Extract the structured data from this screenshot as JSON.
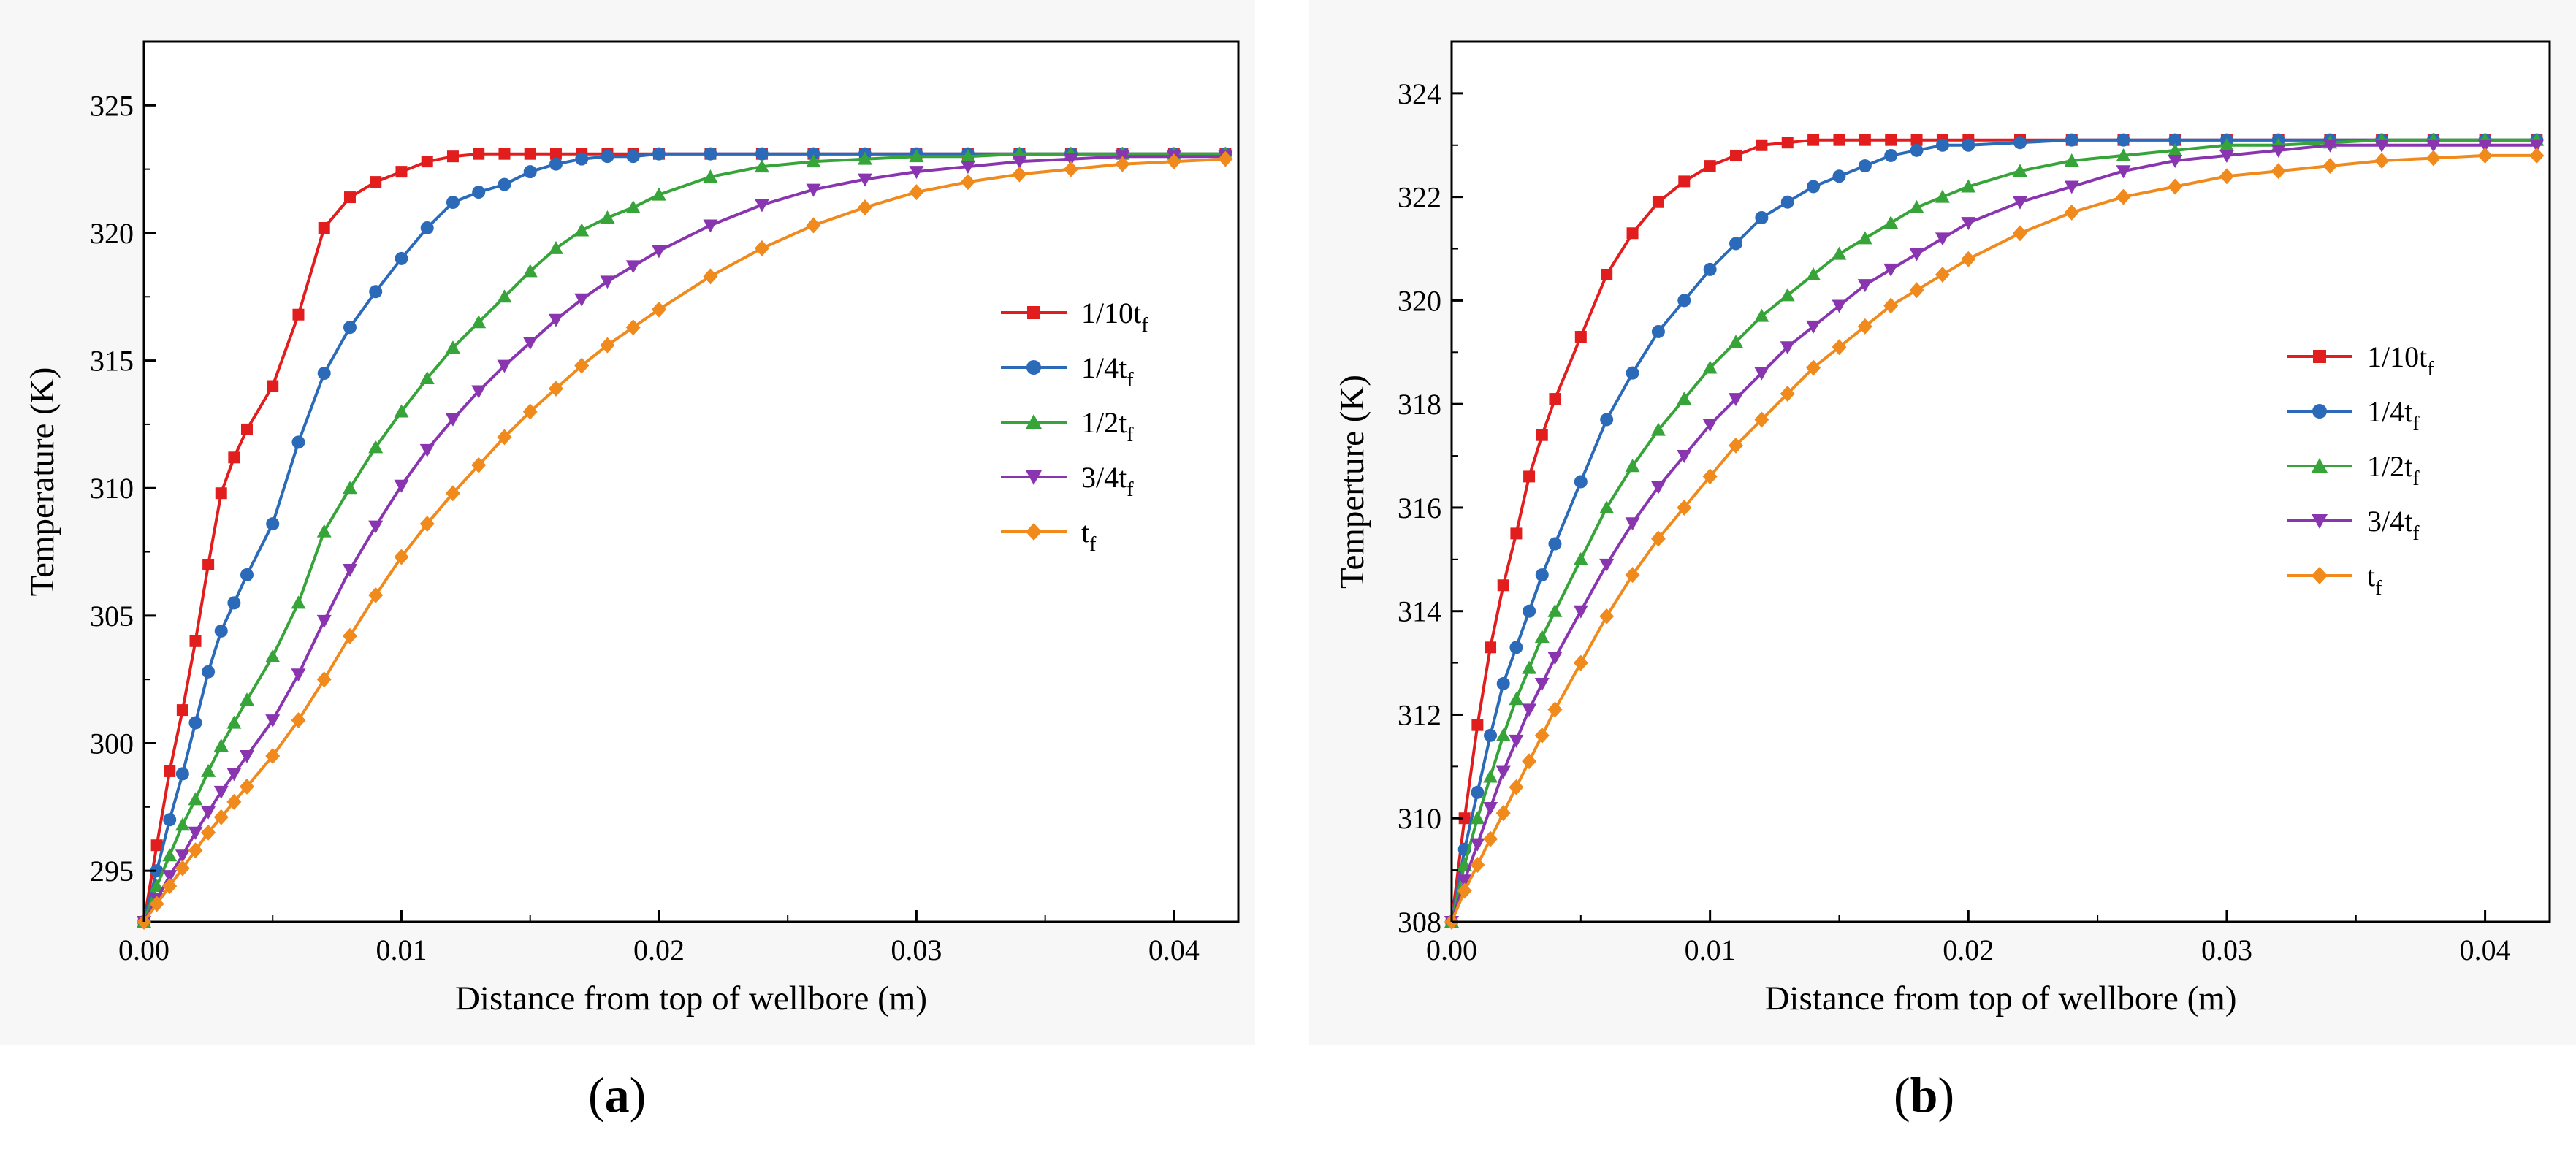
{
  "chart_data": [
    {
      "type": "line",
      "panel_label": "a",
      "xlabel": "Distance from top of wellbore (m)",
      "ylabel": "Temperature (K)",
      "xlim": [
        0,
        0.0425
      ],
      "ylim": [
        293,
        327.5
      ],
      "xticks": [
        "0.00",
        "0.01",
        "0.02",
        "0.03",
        "0.04"
      ],
      "yticks": [
        "295",
        "300",
        "305",
        "310",
        "315",
        "320",
        "325"
      ],
      "legend_position": "right-middle",
      "x": [
        0,
        0.0005,
        0.001,
        0.0015,
        0.002,
        0.0025,
        0.003,
        0.0035,
        0.004,
        0.005,
        0.006,
        0.007,
        0.008,
        0.009,
        0.01,
        0.011,
        0.012,
        0.013,
        0.014,
        0.015,
        0.016,
        0.017,
        0.018,
        0.019,
        0.02,
        0.022,
        0.024,
        0.026,
        0.028,
        0.03,
        0.032,
        0.034,
        0.036,
        0.038,
        0.04,
        0.042
      ],
      "series": [
        {
          "name": "1/10",
          "subscript": "f",
          "color": "#e11d1d",
          "marker": "square",
          "values": [
            293.0,
            296.0,
            298.9,
            301.3,
            304.0,
            307.0,
            309.8,
            311.2,
            312.3,
            314.0,
            316.8,
            320.2,
            321.4,
            322.0,
            322.4,
            322.8,
            323.0,
            323.1,
            323.1,
            323.1,
            323.1,
            323.1,
            323.1,
            323.1,
            323.1,
            323.1,
            323.1,
            323.1,
            323.1,
            323.1,
            323.1,
            323.1,
            323.1,
            323.1,
            323.1,
            323.1
          ]
        },
        {
          "name": "1/4",
          "subscript": "f",
          "color": "#2b6ab8",
          "marker": "circle",
          "values": [
            293.0,
            295.0,
            297.0,
            298.8,
            300.8,
            302.8,
            304.4,
            305.5,
            306.6,
            308.6,
            311.8,
            314.5,
            316.3,
            317.7,
            319.0,
            320.2,
            321.2,
            321.6,
            321.9,
            322.4,
            322.7,
            322.9,
            323.0,
            323.0,
            323.1,
            323.1,
            323.1,
            323.1,
            323.1,
            323.1,
            323.1,
            323.1,
            323.1,
            323.1,
            323.1,
            323.1
          ]
        },
        {
          "name": "1/2",
          "subscript": "f",
          "color": "#37a43a",
          "marker": "triangle-up",
          "values": [
            293.0,
            294.4,
            295.6,
            296.8,
            297.8,
            298.9,
            299.9,
            300.8,
            301.7,
            303.4,
            305.5,
            308.3,
            310.0,
            311.6,
            313.0,
            314.3,
            315.5,
            316.5,
            317.5,
            318.5,
            319.4,
            320.1,
            320.6,
            321.0,
            321.5,
            322.2,
            322.6,
            322.8,
            322.9,
            323.0,
            323.0,
            323.1,
            323.1,
            323.1,
            323.1,
            323.1
          ]
        },
        {
          "name": "3/4",
          "subscript": "f",
          "color": "#8a35b0",
          "marker": "triangle-down",
          "values": [
            293.0,
            293.9,
            294.8,
            295.6,
            296.5,
            297.3,
            298.1,
            298.8,
            299.5,
            300.9,
            302.7,
            304.8,
            306.8,
            308.5,
            310.1,
            311.5,
            312.7,
            313.8,
            314.8,
            315.7,
            316.6,
            317.4,
            318.1,
            318.7,
            319.3,
            320.3,
            321.1,
            321.7,
            322.1,
            322.4,
            322.6,
            322.8,
            322.9,
            323.0,
            323.0,
            323.0
          ]
        },
        {
          "name": "",
          "subscript": "f",
          "color": "#f08a1c",
          "marker": "diamond",
          "values": [
            293.0,
            293.7,
            294.4,
            295.1,
            295.8,
            296.5,
            297.1,
            297.7,
            298.3,
            299.5,
            300.9,
            302.5,
            304.2,
            305.8,
            307.3,
            308.6,
            309.8,
            310.9,
            312.0,
            313.0,
            313.9,
            314.8,
            315.6,
            316.3,
            317.0,
            318.3,
            319.4,
            320.3,
            321.0,
            321.6,
            322.0,
            322.3,
            322.5,
            322.7,
            322.8,
            322.9
          ]
        }
      ]
    },
    {
      "type": "line",
      "panel_label": "b",
      "xlabel": "Distance from top of wellbore (m)",
      "ylabel": "Temperture (K)",
      "xlim": [
        0,
        0.0425
      ],
      "ylim": [
        308,
        325
      ],
      "xticks": [
        "0.00",
        "0.01",
        "0.02",
        "0.03",
        "0.04"
      ],
      "yticks": [
        "308",
        "310",
        "312",
        "314",
        "316",
        "318",
        "320",
        "322",
        "324"
      ],
      "legend_position": "right-middle",
      "x": [
        0,
        0.0005,
        0.001,
        0.0015,
        0.002,
        0.0025,
        0.003,
        0.0035,
        0.004,
        0.005,
        0.006,
        0.007,
        0.008,
        0.009,
        0.01,
        0.011,
        0.012,
        0.013,
        0.014,
        0.015,
        0.016,
        0.017,
        0.018,
        0.019,
        0.02,
        0.022,
        0.024,
        0.026,
        0.028,
        0.03,
        0.032,
        0.034,
        0.036,
        0.038,
        0.04,
        0.042
      ],
      "series": [
        {
          "name": "1/10",
          "subscript": "f",
          "color": "#e11d1d",
          "marker": "square",
          "values": [
            308.0,
            310.0,
            311.8,
            313.3,
            314.5,
            315.5,
            316.6,
            317.4,
            318.1,
            319.3,
            320.5,
            321.3,
            321.9,
            322.3,
            322.6,
            322.8,
            323.0,
            323.05,
            323.1,
            323.1,
            323.1,
            323.1,
            323.1,
            323.1,
            323.1,
            323.1,
            323.1,
            323.1,
            323.1,
            323.1,
            323.1,
            323.1,
            323.1,
            323.1,
            323.1,
            323.1
          ]
        },
        {
          "name": "1/4",
          "subscript": "f",
          "color": "#2b6ab8",
          "marker": "circle",
          "values": [
            308.0,
            309.4,
            310.5,
            311.6,
            312.6,
            313.3,
            314.0,
            314.7,
            315.3,
            316.5,
            317.7,
            318.6,
            319.4,
            320.0,
            320.6,
            321.1,
            321.6,
            321.9,
            322.2,
            322.4,
            322.6,
            322.8,
            322.9,
            323.0,
            323.0,
            323.05,
            323.1,
            323.1,
            323.1,
            323.1,
            323.1,
            323.1,
            323.1,
            323.1,
            323.1,
            323.1
          ]
        },
        {
          "name": "1/2",
          "subscript": "f",
          "color": "#37a43a",
          "marker": "triangle-up",
          "values": [
            308.0,
            309.1,
            310.0,
            310.8,
            311.6,
            312.3,
            312.9,
            313.5,
            314.0,
            315.0,
            316.0,
            316.8,
            317.5,
            318.1,
            318.7,
            319.2,
            319.7,
            320.1,
            320.5,
            320.9,
            321.2,
            321.5,
            321.8,
            322.0,
            322.2,
            322.5,
            322.7,
            322.8,
            322.9,
            323.0,
            323.0,
            323.05,
            323.1,
            323.1,
            323.1,
            323.1
          ]
        },
        {
          "name": "3/4",
          "subscript": "f",
          "color": "#8a35b0",
          "marker": "triangle-down",
          "values": [
            308.0,
            308.8,
            309.5,
            310.2,
            310.9,
            311.5,
            312.1,
            312.6,
            313.1,
            314.0,
            314.9,
            315.7,
            316.4,
            317.0,
            317.6,
            318.1,
            318.6,
            319.1,
            319.5,
            319.9,
            320.3,
            320.6,
            320.9,
            321.2,
            321.5,
            321.9,
            322.2,
            322.5,
            322.7,
            322.8,
            322.9,
            323.0,
            323.0,
            323.0,
            323.0,
            323.0
          ]
        },
        {
          "name": "",
          "subscript": "f",
          "color": "#f08a1c",
          "marker": "diamond",
          "values": [
            308.0,
            308.6,
            309.1,
            309.6,
            310.1,
            310.6,
            311.1,
            311.6,
            312.1,
            313.0,
            313.9,
            314.7,
            315.4,
            316.0,
            316.6,
            317.2,
            317.7,
            318.2,
            318.7,
            319.1,
            319.5,
            319.9,
            320.2,
            320.5,
            320.8,
            321.3,
            321.7,
            322.0,
            322.2,
            322.4,
            322.5,
            322.6,
            322.7,
            322.75,
            322.8,
            322.8
          ]
        }
      ]
    }
  ]
}
